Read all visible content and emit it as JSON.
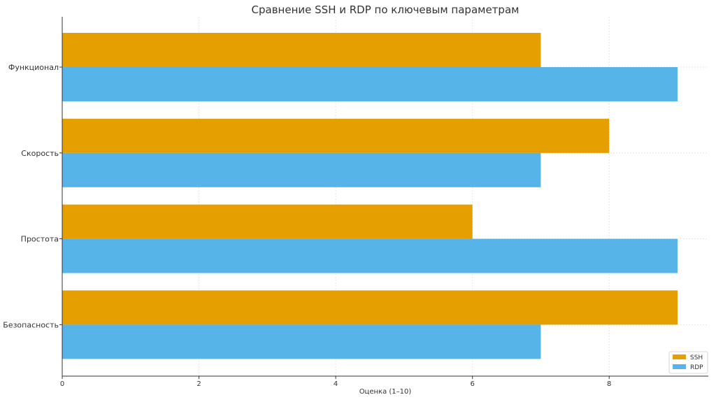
{
  "chart_data": {
    "type": "bar",
    "orientation": "horizontal",
    "title": "Сравнение SSH и RDP по ключевым параметрам",
    "xlabel": "Оценка (1–10)",
    "ylabel": "",
    "categories": [
      "Функционал",
      "Скорость",
      "Простота",
      "Безопасность"
    ],
    "series": [
      {
        "name": "SSH",
        "color": "#E69F00",
        "values": [
          7,
          8,
          6,
          9
        ]
      },
      {
        "name": "RDP",
        "color": "#56B4E9",
        "values": [
          9,
          7,
          9,
          7
        ]
      }
    ],
    "xlim": [
      0,
      9.45
    ],
    "xticks": [
      0,
      2,
      4,
      6,
      8
    ],
    "grid": true,
    "legend_position": "bottom-right"
  }
}
